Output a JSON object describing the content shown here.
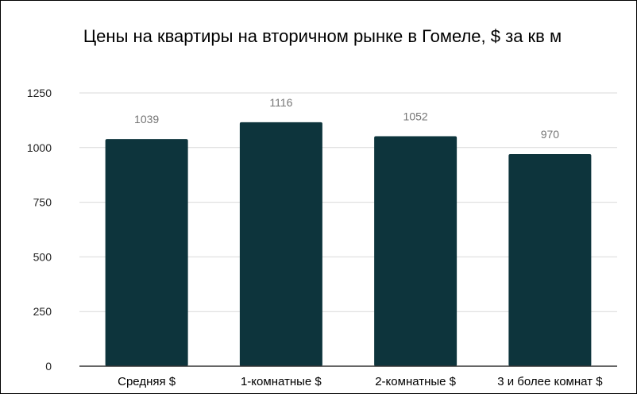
{
  "chart_data": {
    "type": "bar",
    "title": "Цены на квартиры на вторичном рынке в Гомеле, $ за кв м",
    "categories": [
      "Средняя $",
      "1-комнатные $",
      "2-комнатные $",
      "3 и более комнат $"
    ],
    "values": [
      1039,
      1116,
      1052,
      970
    ],
    "data_labels": [
      "1039",
      "1116",
      "1052",
      "970"
    ],
    "yticks": [
      0,
      250,
      500,
      750,
      1000,
      1250
    ],
    "ylim": [
      0,
      1250
    ],
    "xlabel": "",
    "ylabel": "",
    "grid": true,
    "legend": "none",
    "bar_color": "#0d343c",
    "grid_color": "#d9d9d9",
    "axis_color": "#333333"
  }
}
